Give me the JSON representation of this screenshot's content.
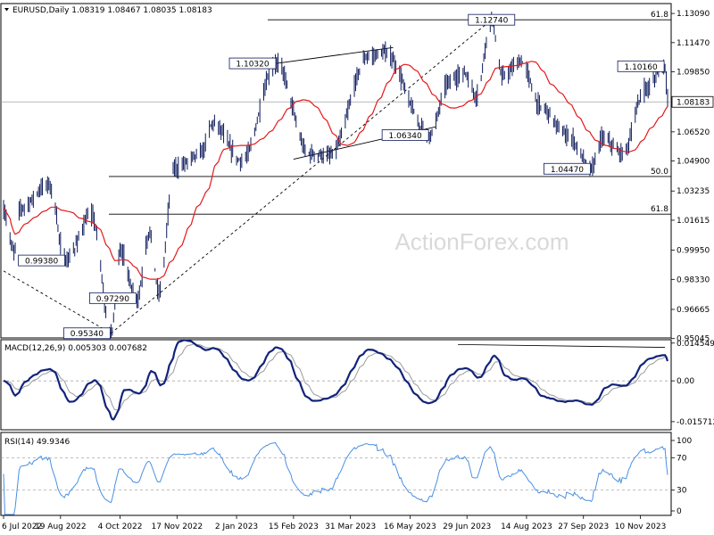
{
  "chart_data": {
    "type": "candlestick",
    "symbol_header": "EURUSD,Daily  1.08319  1.08467  1.08035  1.08183",
    "watermark": "ActionForex.com",
    "current_price_label": "1.08183",
    "current_price": 1.08183,
    "x_tick_labels": [
      "6 Jul 2022",
      "19 Aug 2022",
      "4 Oct 2022",
      "17 Nov 2022",
      "2 Jan 2023",
      "15 Feb 2023",
      "31 Mar 2023",
      "16 May 2023",
      "29 Jun 2023",
      "14 Aug 2023",
      "27 Sep 2023",
      "10 Nov 2023"
    ],
    "price_panel": {
      "ylim": [
        0.9508,
        1.1359
      ],
      "y_tick_values": [
        0.95045,
        0.96665,
        0.9833,
        0.9995,
        1.01615,
        1.03235,
        1.049,
        1.0652,
        1.08183,
        1.0985,
        1.1147,
        1.1309
      ],
      "y_tick_labels": [
        "0.95045",
        "0.96665",
        "0.98330",
        "0.99950",
        "1.01615",
        "1.03235",
        "1.04900",
        "1.06520",
        "1.08183",
        "1.09850",
        "1.11470",
        "1.13090"
      ],
      "moving_average_color": "#e31a1c",
      "price_color": "#0d1a5a",
      "swing_labels": [
        {
          "text": "0.95340",
          "date": "27 Sep 2022",
          "price": 0.9534
        },
        {
          "text": "0.97290",
          "date": "17 Oct 2022",
          "price": 0.9729
        },
        {
          "text": "0.99380",
          "date": "23 Aug 2022",
          "price": 0.9938
        },
        {
          "text": "1.10320",
          "date": "2 Feb 2023",
          "price": 1.1032
        },
        {
          "text": "1.06340",
          "date": "31 May 2023",
          "price": 1.0634
        },
        {
          "text": "1.12740",
          "date": "18 Jul 2023",
          "price": 1.1274
        },
        {
          "text": "1.04470",
          "date": "3 Oct 2023",
          "price": 1.0447
        },
        {
          "text": "1.10160",
          "date": "29 Nov 2023",
          "price": 1.1016
        }
      ],
      "fib_levels": [
        {
          "label": "61.8",
          "price": 1.1274
        },
        {
          "label": "50.0",
          "price": 1.0404
        },
        {
          "label": "61.8",
          "price": 1.0195
        }
      ]
    },
    "macd_panel": {
      "label": "MACD(12,26,9) 0.005303 0.007682",
      "ylim": [
        -0.0185,
        0.0155
      ],
      "y_tick_values": [
        0.014549,
        0.0,
        -0.015712
      ],
      "y_tick_labels": [
        "0.014549",
        "0.00",
        "-0.015712"
      ]
    },
    "rsi_panel": {
      "label": "RSI(14) 49.9346",
      "ylim": [
        0,
        100
      ],
      "y_tick_values": [
        100,
        70,
        30,
        0
      ],
      "y_tick_labels": [
        "100",
        "70",
        "30",
        "0"
      ]
    }
  }
}
